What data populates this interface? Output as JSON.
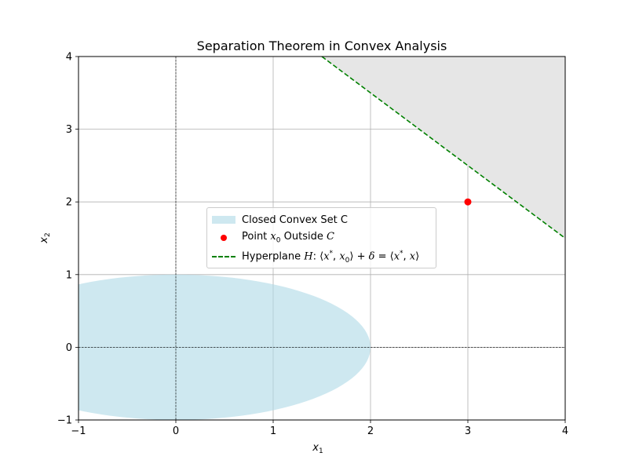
{
  "chart_data": {
    "type": "line",
    "title": "Separation Theorem in Convex Analysis",
    "xlabel": "x",
    "xlabel_sub": "1",
    "ylabel": "x",
    "ylabel_sub": "2",
    "xlim": [
      -1,
      4
    ],
    "ylim": [
      -1,
      4
    ],
    "xticks": [
      -1,
      0,
      1,
      2,
      3,
      4
    ],
    "yticks": [
      -1,
      0,
      1,
      2,
      3,
      4
    ],
    "grid": true,
    "convex_set": {
      "type": "ellipse",
      "center": [
        0,
        0
      ],
      "semi_axis_x": 2,
      "semi_axis_y": 1,
      "color": "#add8e6",
      "label": "Closed Convex Set C"
    },
    "point": {
      "x": 3,
      "y": 2,
      "color": "#ff0000",
      "label_text": "Point ",
      "label_math": "x",
      "label_sub": "0",
      "label_after": " Outside ",
      "label_italic": "C"
    },
    "hyperplane": {
      "x": [
        1.5,
        4
      ],
      "y": [
        4,
        1.5
      ],
      "color": "#008000",
      "style": "dashed",
      "label": "Hyperplane H: ⟨x*, x₀⟩ + δ = ⟨x*, x⟩",
      "label_h": "H",
      "label_mid": ": ⟨",
      "label_x1": "x",
      "label_star": "*",
      "label_sep": ", ",
      "label_x2": "x",
      "label_sub": "0",
      "label_plus": "⟩ + ",
      "label_delta": "δ",
      "label_eq": " = ⟨",
      "label_x3": "x",
      "label_star2": "*",
      "label_sep2": ", ",
      "label_x4": "x",
      "label_close": "⟩"
    },
    "halfspace": {
      "color": "#e6e6e6",
      "vertices": [
        [
          1.5,
          4
        ],
        [
          4,
          4
        ],
        [
          4,
          1.5
        ]
      ]
    },
    "reference_lines": [
      {
        "orientation": "horizontal",
        "value": 0,
        "style": "dashed"
      },
      {
        "orientation": "vertical",
        "value": 0,
        "style": "dashed"
      }
    ],
    "legend_position": "center"
  }
}
